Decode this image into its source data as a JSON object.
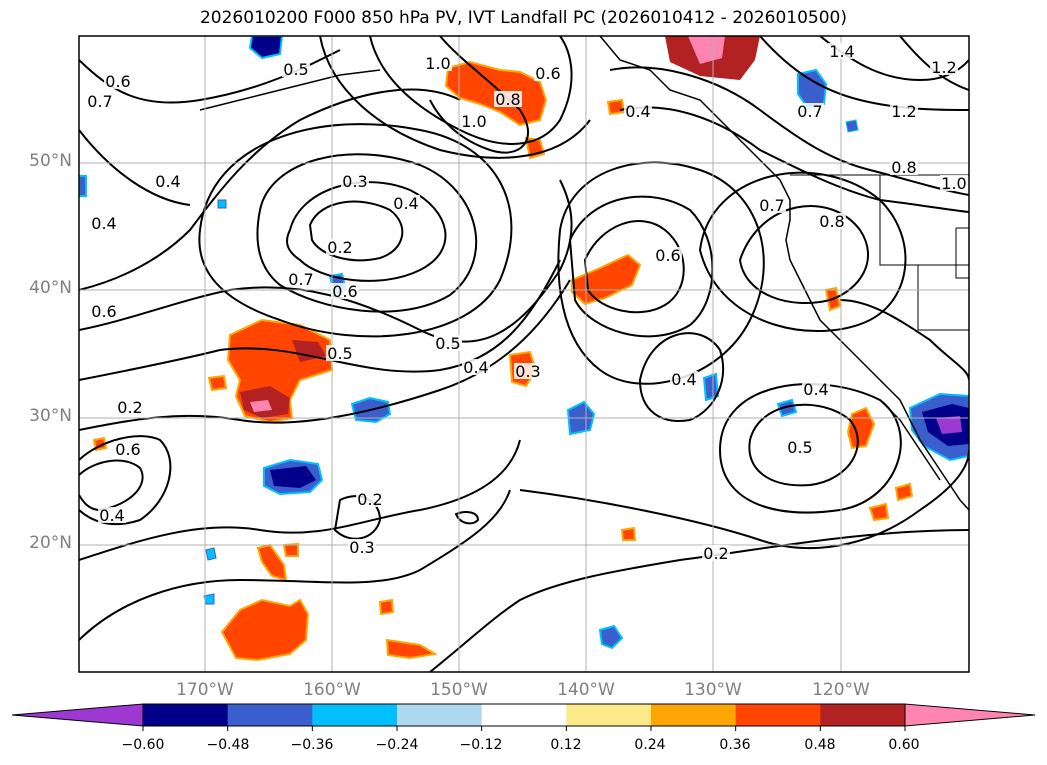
{
  "title": "2026010200 F000 850 hPa PV, IVT Landfall PC (2026010412 - 2026010500)",
  "map": {
    "lat_labels": [
      "50°N",
      "40°N",
      "30°N",
      "20°N"
    ],
    "lon_labels": [
      "170°W",
      "160°W",
      "150°W",
      "140°W",
      "130°W",
      "120°W"
    ],
    "contour_levels": [
      "0.2",
      "0.3",
      "0.4",
      "0.5",
      "0.6",
      "0.7",
      "0.8",
      "1.0",
      "1.2",
      "1.4"
    ],
    "contour_labels": [
      "0.5",
      "0.7",
      "0.6",
      "0.4",
      "0.4",
      "1.0",
      "1.0",
      "0.8",
      "0.6",
      "0.4",
      "0.7",
      "1.4",
      "1.2",
      "1.2",
      "1.0",
      "0.8",
      "0.3",
      "0.4",
      "0.2",
      "0.7",
      "0.6",
      "0.7",
      "0.8",
      "0.6",
      "0.6",
      "0.4",
      "0.5",
      "0.4",
      "0.3",
      "0.2",
      "0.4",
      "0.4",
      "0.5",
      "0.4",
      "0.6",
      "0.5",
      "0.2",
      "0.3",
      "0.2"
    ]
  },
  "colorbar": {
    "colors": [
      "#9d38d3",
      "#00008b",
      "#3a5fcd",
      "#00bfff",
      "#add8f0",
      "#ffffff",
      "#fce98a",
      "#ffa500",
      "#ff4500",
      "#b22222",
      "#ff85b0"
    ],
    "ticks": [
      "−0.60",
      "−0.48",
      "−0.36",
      "−0.24",
      "−0.12",
      "0.12",
      "0.24",
      "0.36",
      "0.48",
      "0.60"
    ]
  }
}
